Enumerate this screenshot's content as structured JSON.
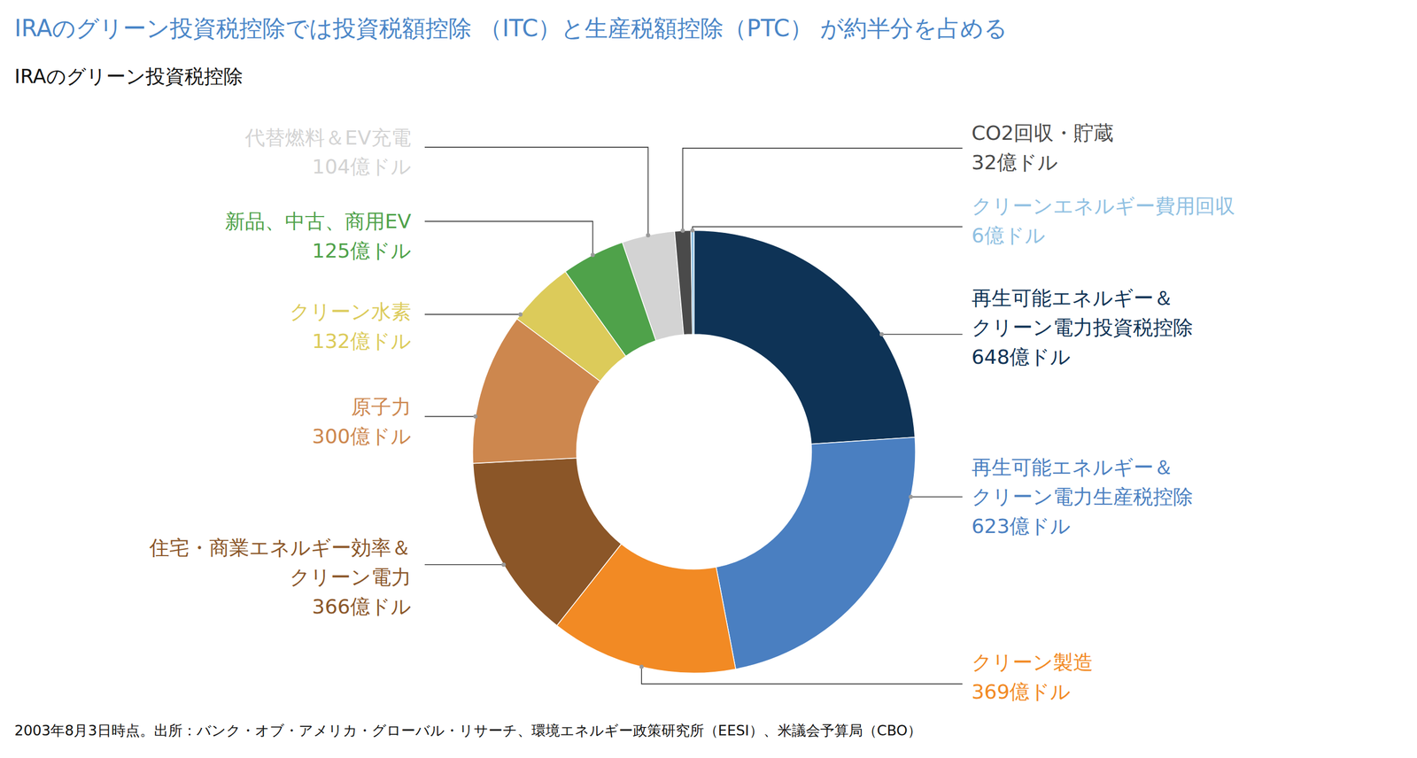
{
  "chart_data": {
    "type": "donut",
    "title": "IRAのグリーン投資税控除では投資税額控除 （ITC）と生産税額控除（PTC） が約半分を占める",
    "subtitle": "IRAのグリーン投資税控除",
    "note": "2003年8月3日時点。出所：バンク・オブ・アメリカ・グローバル・リサーチ、環境エネルギー政策研究所（EESI）、米議会予算局（CBO）",
    "categories": [
      "再生可能エネルギー＆\nクリーン電力投資税控除",
      "再生可能エネルギー＆\nクリーン電力生産税控除",
      "クリーン製造",
      "住宅・商業エネルギー効率＆\nクリーン電力",
      "原子力",
      "クリーン水素",
      "新品、中古、商用EV",
      "代替燃料＆EV充電",
      "CO2回収・貯蔵",
      "クリーンエネルギー費用回収"
    ],
    "values": [
      648,
      623,
      369,
      366,
      300,
      132,
      125,
      104,
      32,
      6
    ],
    "value_labels": [
      "648億ドル",
      "623億ドル",
      "369億ドル",
      "366億ドル",
      "300億ドル",
      "132億ドル",
      "125億ドル",
      "104億ドル",
      "32億ドル",
      "6億ドル"
    ],
    "colors": [
      "#0e3356",
      "#4a7fc1",
      "#f28a24",
      "#8b5628",
      "#cd874e",
      "#dccb5a",
      "#4fa24a",
      "#d3d3d3",
      "#4a4a4a",
      "#8fc0e2"
    ],
    "data_labels": true
  }
}
